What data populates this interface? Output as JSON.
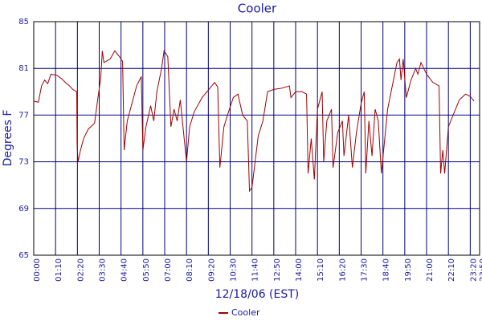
{
  "chart_data": {
    "type": "line",
    "title": "Cooler",
    "x_label": "12/18/06 (EST)",
    "y_label": "Degrees F",
    "xlim": [
      0,
      1430
    ],
    "ylim": [
      65,
      85
    ],
    "xticks": [
      {
        "value": 0,
        "label": "00:00"
      },
      {
        "value": 70,
        "label": "01:10"
      },
      {
        "value": 140,
        "label": "02:20"
      },
      {
        "value": 210,
        "label": "03:30"
      },
      {
        "value": 280,
        "label": "04:40"
      },
      {
        "value": 350,
        "label": "05:50"
      },
      {
        "value": 420,
        "label": "07:00"
      },
      {
        "value": 490,
        "label": "08:10"
      },
      {
        "value": 560,
        "label": "09:20"
      },
      {
        "value": 630,
        "label": "10:30"
      },
      {
        "value": 700,
        "label": "11:40"
      },
      {
        "value": 770,
        "label": "12:50"
      },
      {
        "value": 840,
        "label": "14:00"
      },
      {
        "value": 910,
        "label": "15:10"
      },
      {
        "value": 980,
        "label": "16:20"
      },
      {
        "value": 1050,
        "label": "17:30"
      },
      {
        "value": 1120,
        "label": "18:40"
      },
      {
        "value": 1190,
        "label": "19:50"
      },
      {
        "value": 1260,
        "label": "21:00"
      },
      {
        "value": 1330,
        "label": "22:10"
      },
      {
        "value": 1400,
        "label": "23:20"
      },
      {
        "value": 1430,
        "label": "23:50"
      }
    ],
    "yticks": [
      65,
      69,
      73,
      77,
      81,
      85
    ],
    "grid": true,
    "legend": "bottom",
    "x": [
      0,
      15,
      25,
      35,
      45,
      55,
      75,
      90,
      105,
      115,
      125,
      138,
      139,
      142,
      150,
      160,
      175,
      195,
      205,
      215,
      220,
      225,
      245,
      260,
      275,
      285,
      290,
      300,
      315,
      330,
      345,
      350,
      360,
      375,
      385,
      395,
      410,
      418,
      430,
      440,
      450,
      460,
      470,
      490,
      500,
      515,
      540,
      565,
      580,
      590,
      597,
      610,
      625,
      640,
      655,
      670,
      685,
      692,
      700,
      710,
      720,
      735,
      750,
      770,
      795,
      820,
      825,
      840,
      860,
      875,
      880,
      890,
      900,
      910,
      920,
      925,
      930,
      940,
      955,
      960,
      975,
      990,
      995,
      1010,
      1022,
      1035,
      1050,
      1060,
      1065,
      1075,
      1085,
      1095,
      1105,
      1115,
      1135,
      1150,
      1165,
      1173,
      1178,
      1185,
      1195,
      1210,
      1225,
      1232,
      1242,
      1260,
      1280,
      1300,
      1305,
      1312,
      1318,
      1330,
      1345,
      1365,
      1385,
      1400,
      1412
    ],
    "series": [
      {
        "name": "Cooler",
        "color": "#a00000",
        "values": [
          78.2,
          78.1,
          79.5,
          80,
          79.7,
          80.5,
          80.4,
          80.1,
          79.7,
          79.5,
          79.2,
          79,
          74.5,
          73,
          74,
          75,
          75.8,
          76.3,
          78.3,
          80.2,
          82.5,
          81.5,
          81.8,
          82.5,
          82,
          81.6,
          74,
          76.5,
          78,
          79.5,
          80.3,
          74,
          76,
          77.8,
          76.5,
          79,
          81,
          82.5,
          82,
          76,
          77.5,
          76.5,
          78.3,
          73,
          76,
          77.3,
          78.5,
          79.3,
          79.8,
          79.4,
          72.5,
          76,
          77.3,
          78.5,
          78.8,
          77,
          76.5,
          70.5,
          70.8,
          73,
          75.2,
          76.5,
          79,
          79.2,
          79.3,
          79.5,
          78.5,
          79,
          79,
          78.8,
          72,
          75,
          71.5,
          77.5,
          78.5,
          79,
          73,
          76.5,
          77.5,
          72.5,
          75.5,
          76.5,
          73.5,
          77,
          72.5,
          75.5,
          78,
          79,
          72,
          76.5,
          73.5,
          77.5,
          76.5,
          72,
          77.5,
          79.5,
          81.5,
          81.8,
          80,
          81.8,
          78.5,
          80,
          81,
          80.5,
          81.5,
          80.5,
          79.8,
          79.5,
          72,
          74,
          72,
          76,
          77,
          78.3,
          78.8,
          78.6,
          78.2
        ]
      }
    ]
  }
}
